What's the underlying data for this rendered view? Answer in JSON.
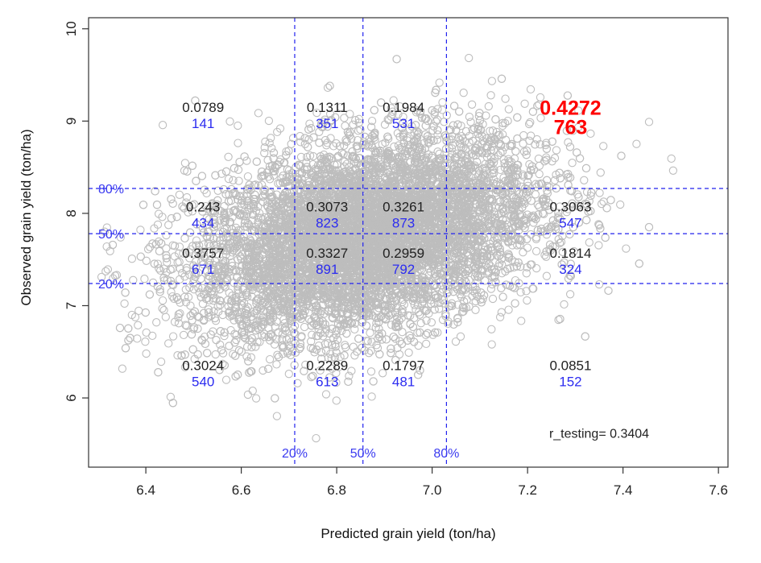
{
  "chart_data": {
    "type": "scatter",
    "title": "",
    "xlabel": "Predicted grain yield (ton/ha)",
    "ylabel": "Observed grain yield (ton/ha)",
    "xlim": [
      6.28,
      7.62
    ],
    "ylim": [
      5.25,
      10.12
    ],
    "xticks": [
      6.4,
      6.6,
      6.8,
      7.0,
      7.2,
      7.4,
      7.6
    ],
    "xtick_labels": [
      "6.4",
      "6.6",
      "6.8",
      "7.0",
      "7.2",
      "7.4",
      "7.6"
    ],
    "yticks": [
      6,
      7,
      8,
      9,
      10
    ],
    "ytick_labels": [
      "6",
      "7",
      "8",
      "9",
      "10"
    ],
    "point_color": "#bdbdbd",
    "cloud": {
      "n_points": 9000,
      "x_mean": 6.86,
      "x_sd": 0.18,
      "y_mean": 7.75,
      "y_sd": 0.55,
      "correlation": 0.3404
    },
    "x_quantile_lines": [
      {
        "value": 6.712,
        "label": "20%"
      },
      {
        "value": 6.855,
        "label": "50%"
      },
      {
        "value": 7.03,
        "label": "80%"
      }
    ],
    "y_quantile_lines": [
      {
        "value": 7.24,
        "label": "20%"
      },
      {
        "value": 7.78,
        "label": "50%"
      },
      {
        "value": 8.27,
        "label": "80%"
      }
    ],
    "cells": [
      {
        "row": "top",
        "col": 1,
        "cor": "0.0789",
        "n": "141",
        "x": 6.52,
        "y": 9.1
      },
      {
        "row": "top",
        "col": 2,
        "cor": "0.1311",
        "n": "351",
        "x": 6.78,
        "y": 9.1
      },
      {
        "row": "top",
        "col": 3,
        "cor": "0.1984",
        "n": "531",
        "x": 6.94,
        "y": 9.1
      },
      {
        "row": "top",
        "col": 4,
        "cor": "0.4272",
        "n": "763",
        "x": 7.29,
        "y": 9.07,
        "highlight": true
      },
      {
        "row": "upper",
        "col": 1,
        "cor": "0.243",
        "n": "434",
        "x": 6.52,
        "y": 8.02
      },
      {
        "row": "upper",
        "col": 2,
        "cor": "0.3073",
        "n": "823",
        "x": 6.78,
        "y": 8.02
      },
      {
        "row": "upper",
        "col": 3,
        "cor": "0.3261",
        "n": "873",
        "x": 6.94,
        "y": 8.02
      },
      {
        "row": "upper",
        "col": 4,
        "cor": "0.3063",
        "n": "547",
        "x": 7.29,
        "y": 8.02
      },
      {
        "row": "lower",
        "col": 1,
        "cor": "0.3757",
        "n": "671",
        "x": 6.52,
        "y": 7.52
      },
      {
        "row": "lower",
        "col": 2,
        "cor": "0.3327",
        "n": "891",
        "x": 6.78,
        "y": 7.52
      },
      {
        "row": "lower",
        "col": 3,
        "cor": "0.2959",
        "n": "792",
        "x": 6.94,
        "y": 7.52
      },
      {
        "row": "lower",
        "col": 4,
        "cor": "0.1814",
        "n": "324",
        "x": 7.29,
        "y": 7.52
      },
      {
        "row": "bottom",
        "col": 1,
        "cor": "0.3024",
        "n": "540",
        "x": 6.52,
        "y": 6.3
      },
      {
        "row": "bottom",
        "col": 2,
        "cor": "0.2289",
        "n": "613",
        "x": 6.78,
        "y": 6.3
      },
      {
        "row": "bottom",
        "col": 3,
        "cor": "0.1797",
        "n": "481",
        "x": 6.94,
        "y": 6.3
      },
      {
        "row": "bottom",
        "col": 4,
        "cor": "0.0851",
        "n": "152",
        "x": 7.29,
        "y": 6.3
      }
    ],
    "annotation": {
      "text": "r_testing= 0.3404",
      "x": 7.35,
      "y": 5.57
    }
  }
}
